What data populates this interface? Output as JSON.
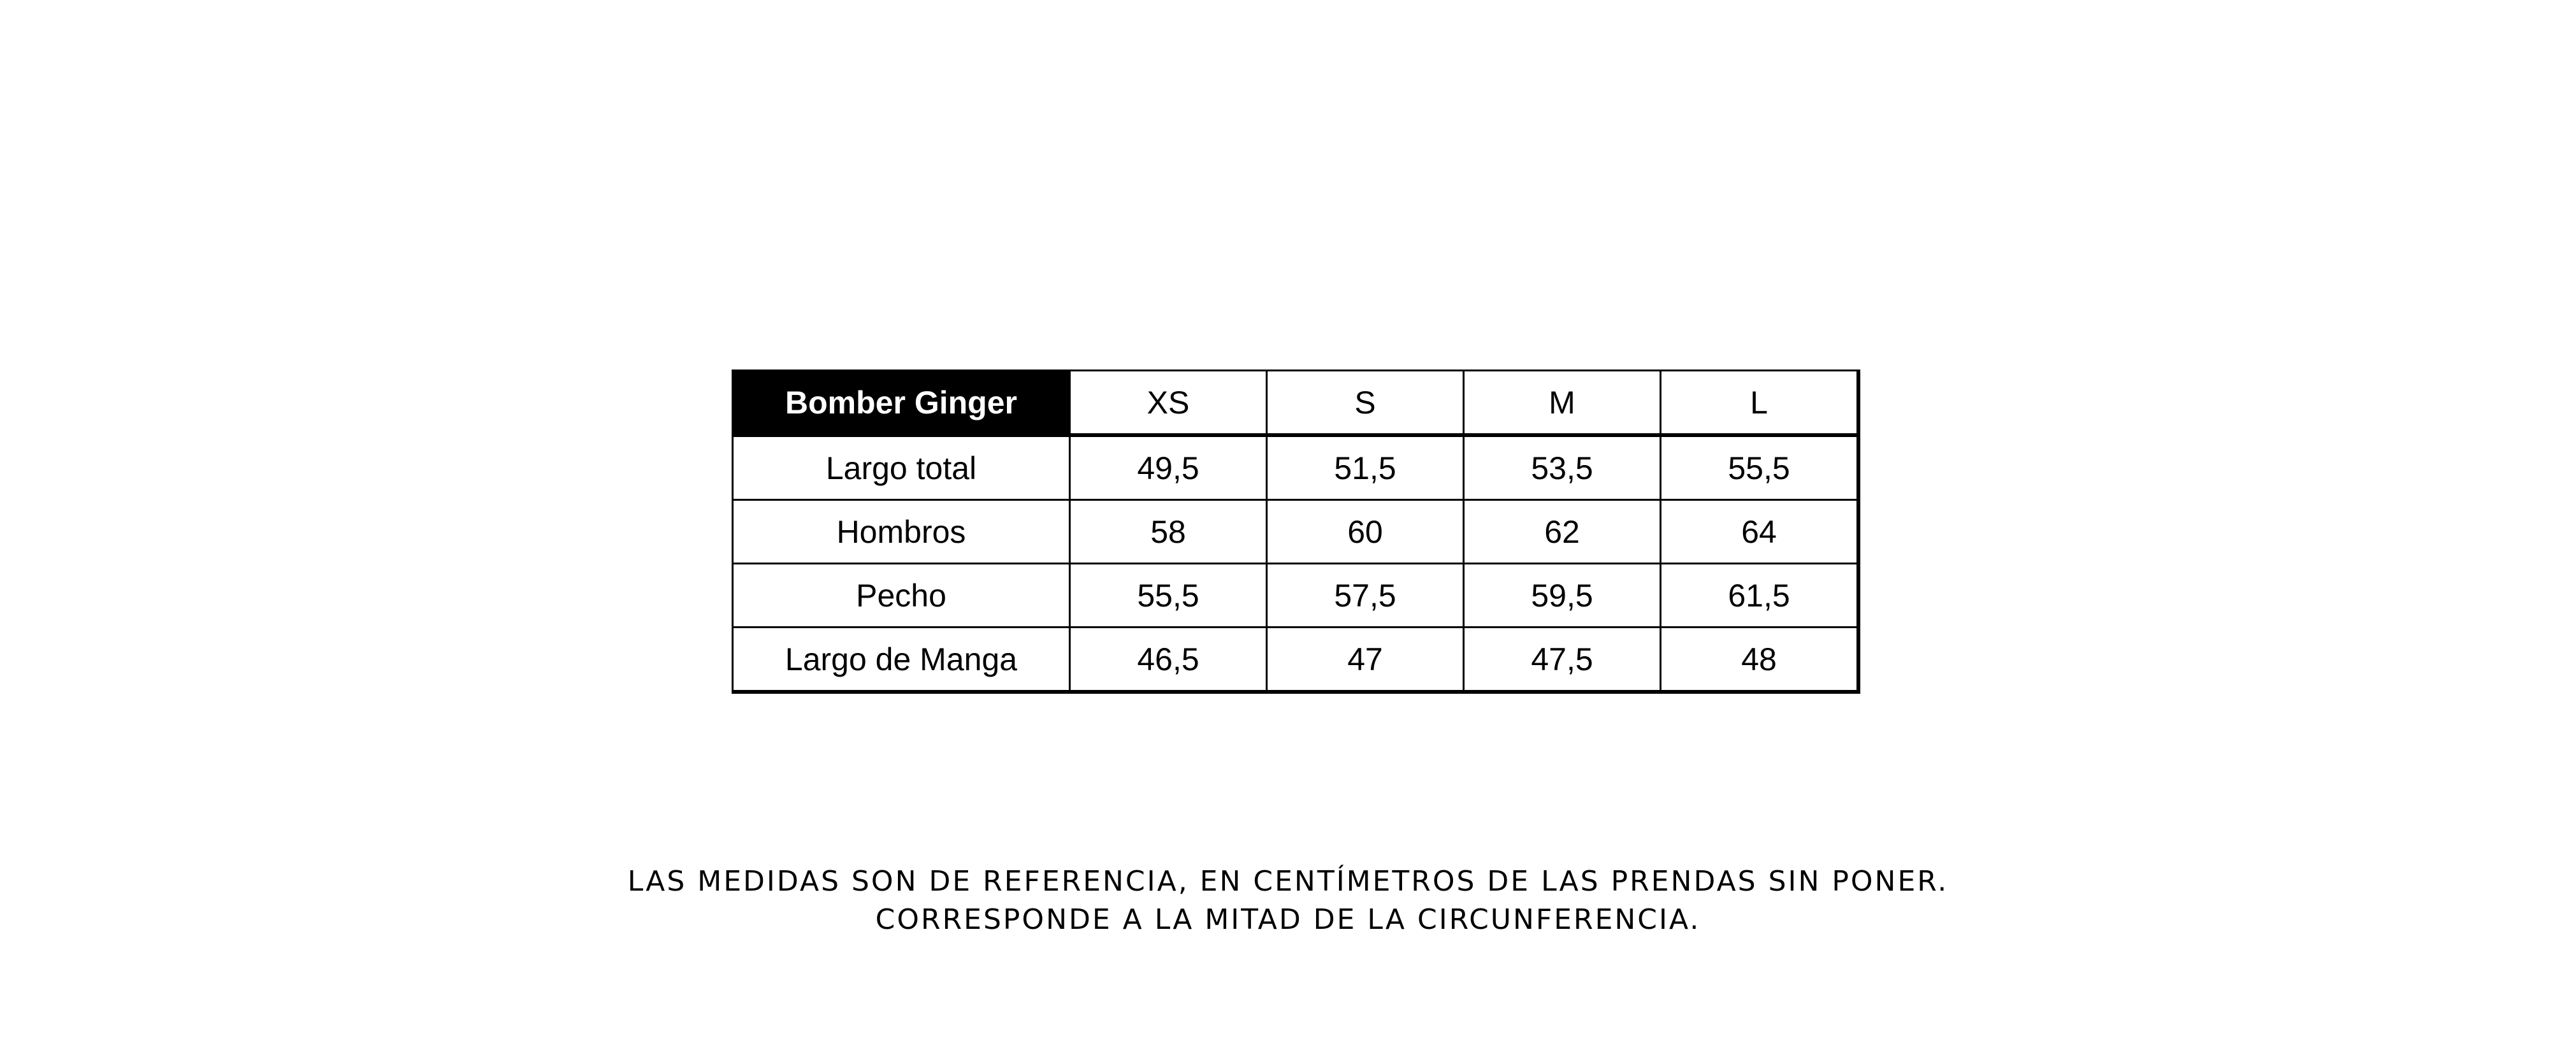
{
  "table": {
    "title": "Bomber Ginger",
    "sizes": [
      "XS",
      "S",
      "M",
      "L"
    ],
    "rows": [
      {
        "label": "Largo total",
        "values": [
          "49,5",
          "51,5",
          "53,5",
          "55,5"
        ]
      },
      {
        "label": "Hombros",
        "values": [
          "58",
          "60",
          "62",
          "64"
        ]
      },
      {
        "label": "Pecho",
        "values": [
          "55,5",
          "57,5",
          "59,5",
          "61,5"
        ]
      },
      {
        "label": "Largo de Manga",
        "values": [
          "46,5",
          "47",
          "47,5",
          "48"
        ]
      }
    ]
  },
  "notes": {
    "line1": "LAS MEDIDAS SON DE REFERENCIA, EN CENTÍMETROS DE LAS PRENDAS SIN PONER.",
    "line2": "CORRESPONDE A LA MITAD DE LA CIRCUNFERENCIA."
  }
}
